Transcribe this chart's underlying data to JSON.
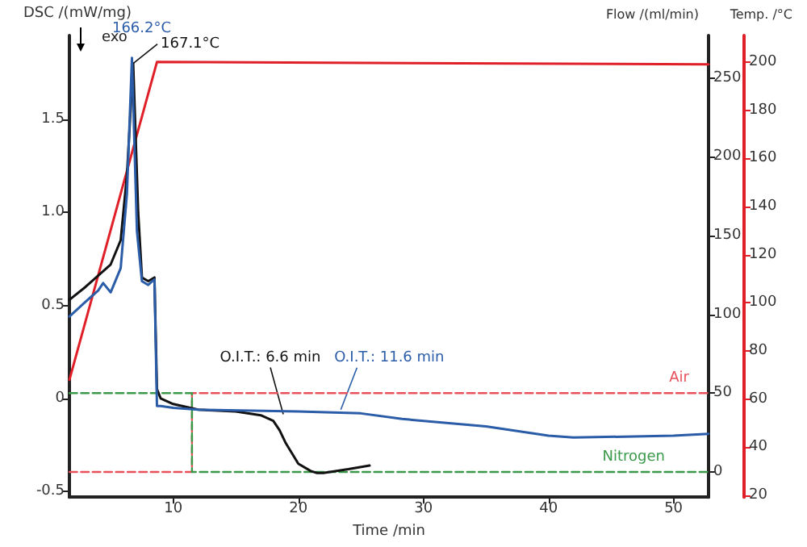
{
  "chart_data": {
    "type": "line",
    "xlabel": "Time /min",
    "ylabel": "DSC /(mW/mg)",
    "y2label": "Flow /(ml/min)",
    "y3label": "Temp. /°C",
    "xlim": [
      1.7,
      52.8
    ],
    "xticks": [
      10,
      20,
      30,
      40,
      50
    ],
    "ylim": [
      -0.53,
      1.95
    ],
    "yticks": [
      -0.5,
      0,
      0.5,
      {
        "value": 1,
        "label": "1.0"
      },
      1.5
    ],
    "y2lim": [
      -16,
      277
    ],
    "y2ticks": [
      0,
      50,
      100,
      150,
      200,
      250
    ],
    "y3lim": [
      19.3,
      211
    ],
    "y3ticks": [
      20,
      40,
      60,
      80,
      100,
      120,
      140,
      160,
      180,
      200
    ],
    "grid": false,
    "legend": false,
    "marker": "none",
    "series": [
      {
        "color": "#e02028",
        "axis": "y3",
        "x": [
          1.7,
          8.7,
          52.8
        ],
        "values": [
          68,
          200,
          199
        ]
      },
      {
        "name": "Air",
        "color": "#e8505a",
        "axis": "y2",
        "line_style": "dashed",
        "x": [
          1.7,
          11.5,
          11.5,
          52.8
        ],
        "values": [
          0,
          0,
          50,
          50
        ]
      },
      {
        "name": "Nitrogen",
        "color": "#3a9a4a",
        "axis": "y2",
        "line_style": "dashed",
        "x": [
          1.7,
          11.5,
          11.5,
          52.8
        ],
        "values": [
          50,
          50,
          0,
          0
        ]
      },
      {
        "color": "#111111",
        "x": [
          1.7,
          3,
          4,
          5,
          5.8,
          6.3,
          6.8,
          7.2,
          7.5,
          8,
          8.5,
          8.7,
          9,
          10,
          12,
          15,
          17,
          18,
          18.5,
          19,
          20,
          21,
          21.5,
          22,
          24,
          25.7
        ],
        "values": [
          0.53,
          0.6,
          0.66,
          0.72,
          0.85,
          1.2,
          1.8,
          1.0,
          0.65,
          0.63,
          0.65,
          0.05,
          0.0,
          -0.03,
          -0.06,
          -0.07,
          -0.09,
          -0.12,
          -0.17,
          -0.24,
          -0.35,
          -0.39,
          -0.4,
          -0.4,
          -0.38,
          -0.36
        ]
      },
      {
        "color": "#2a5ca8",
        "x": [
          1.7,
          3,
          4,
          4.4,
          5,
          5.8,
          6.3,
          6.7,
          7.1,
          7.5,
          8,
          8.5,
          8.7,
          9,
          10,
          12,
          20,
          25,
          28.3,
          35,
          40,
          42,
          50,
          52.8
        ],
        "values": [
          0.44,
          0.52,
          0.58,
          0.62,
          0.57,
          0.7,
          1.1,
          1.83,
          0.9,
          0.63,
          0.61,
          0.64,
          -0.04,
          -0.04,
          -0.05,
          -0.06,
          -0.07,
          -0.08,
          -0.11,
          -0.15,
          -0.2,
          -0.21,
          -0.2,
          -0.19
        ]
      }
    ],
    "annotations": [
      {
        "text": "166.2°C",
        "x": 6.7,
        "y": 1.83
      },
      {
        "text": "167.1°C",
        "x": 6.8,
        "y": 1.8
      },
      {
        "text": "O.I.T.: 6.6 min",
        "x": 18.8,
        "y": -0.085
      },
      {
        "text": "O.I.T.: 11.6 min",
        "x": 23.4,
        "y": -0.06
      },
      "exo"
    ]
  }
}
